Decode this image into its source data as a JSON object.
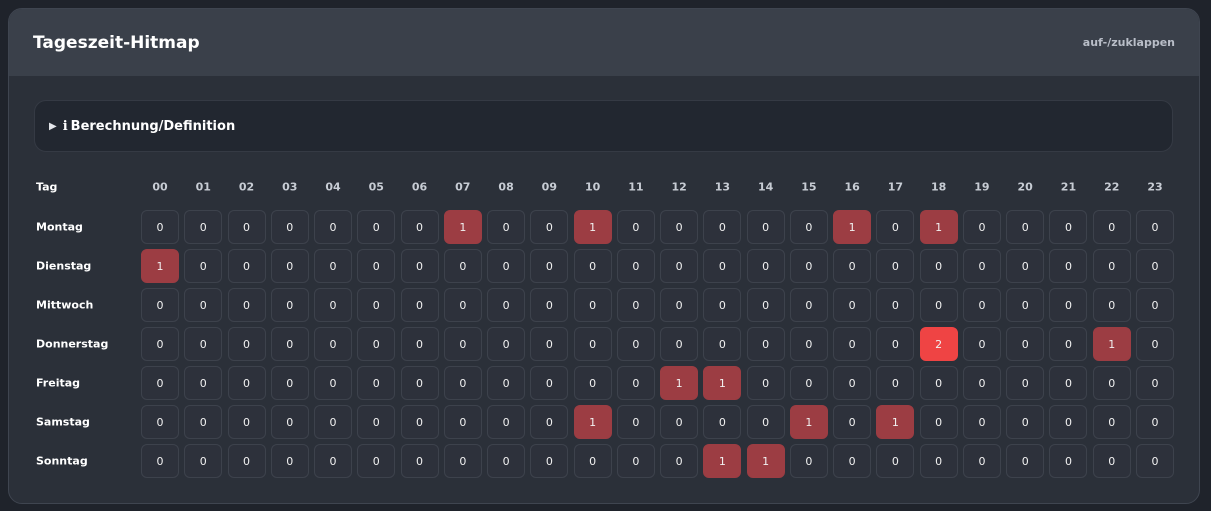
{
  "header": {
    "title": "Tageszeit-Hitmap",
    "toggle_label": "auf-/zuklappen"
  },
  "details": {
    "icon": "info-icon",
    "info_glyph": "i",
    "label": "Berechnung/Definition"
  },
  "heatmap": {
    "corner_label": "Tag",
    "hours": [
      "00",
      "01",
      "02",
      "03",
      "04",
      "05",
      "06",
      "07",
      "08",
      "09",
      "10",
      "11",
      "12",
      "13",
      "14",
      "15",
      "16",
      "17",
      "18",
      "19",
      "20",
      "21",
      "22",
      "23"
    ],
    "colors": {
      "zero": "#2d313b",
      "one": "#9c3d43",
      "two": "#ef4444"
    },
    "rows": [
      {
        "day": "Montag",
        "values": [
          0,
          0,
          0,
          0,
          0,
          0,
          0,
          1,
          0,
          0,
          1,
          0,
          0,
          0,
          0,
          0,
          1,
          0,
          1,
          0,
          0,
          0,
          0,
          0
        ]
      },
      {
        "day": "Dienstag",
        "values": [
          1,
          0,
          0,
          0,
          0,
          0,
          0,
          0,
          0,
          0,
          0,
          0,
          0,
          0,
          0,
          0,
          0,
          0,
          0,
          0,
          0,
          0,
          0,
          0
        ]
      },
      {
        "day": "Mittwoch",
        "values": [
          0,
          0,
          0,
          0,
          0,
          0,
          0,
          0,
          0,
          0,
          0,
          0,
          0,
          0,
          0,
          0,
          0,
          0,
          0,
          0,
          0,
          0,
          0,
          0
        ]
      },
      {
        "day": "Donnerstag",
        "values": [
          0,
          0,
          0,
          0,
          0,
          0,
          0,
          0,
          0,
          0,
          0,
          0,
          0,
          0,
          0,
          0,
          0,
          0,
          2,
          0,
          0,
          0,
          1,
          0
        ]
      },
      {
        "day": "Freitag",
        "values": [
          0,
          0,
          0,
          0,
          0,
          0,
          0,
          0,
          0,
          0,
          0,
          0,
          1,
          1,
          0,
          0,
          0,
          0,
          0,
          0,
          0,
          0,
          0,
          0
        ]
      },
      {
        "day": "Samstag",
        "values": [
          0,
          0,
          0,
          0,
          0,
          0,
          0,
          0,
          0,
          0,
          1,
          0,
          0,
          0,
          0,
          1,
          0,
          1,
          0,
          0,
          0,
          0,
          0,
          0
        ]
      },
      {
        "day": "Sonntag",
        "values": [
          0,
          0,
          0,
          0,
          0,
          0,
          0,
          0,
          0,
          0,
          0,
          0,
          0,
          1,
          1,
          0,
          0,
          0,
          0,
          0,
          0,
          0,
          0,
          0
        ]
      }
    ]
  }
}
